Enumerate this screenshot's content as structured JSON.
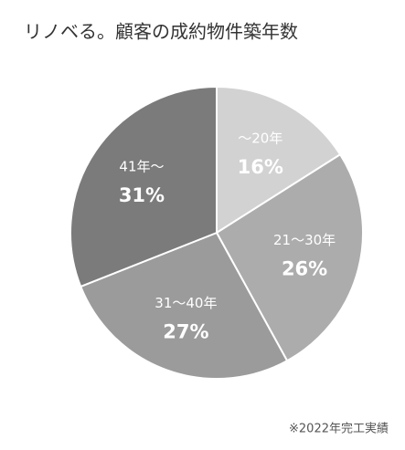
{
  "chart_data": {
    "type": "pie",
    "title": "リノベる。顧客の成約物件築年数",
    "categories": [
      "〜20年",
      "21〜30年",
      "31〜40年",
      "41年〜"
    ],
    "values": [
      16,
      26,
      27,
      31
    ],
    "value_labels": [
      "16%",
      "26%",
      "27%",
      "31%"
    ],
    "colors": [
      "#d2d2d2",
      "#acacac",
      "#9b9b9b",
      "#7b7b7b"
    ],
    "footnote": "※2022年完工実績"
  }
}
